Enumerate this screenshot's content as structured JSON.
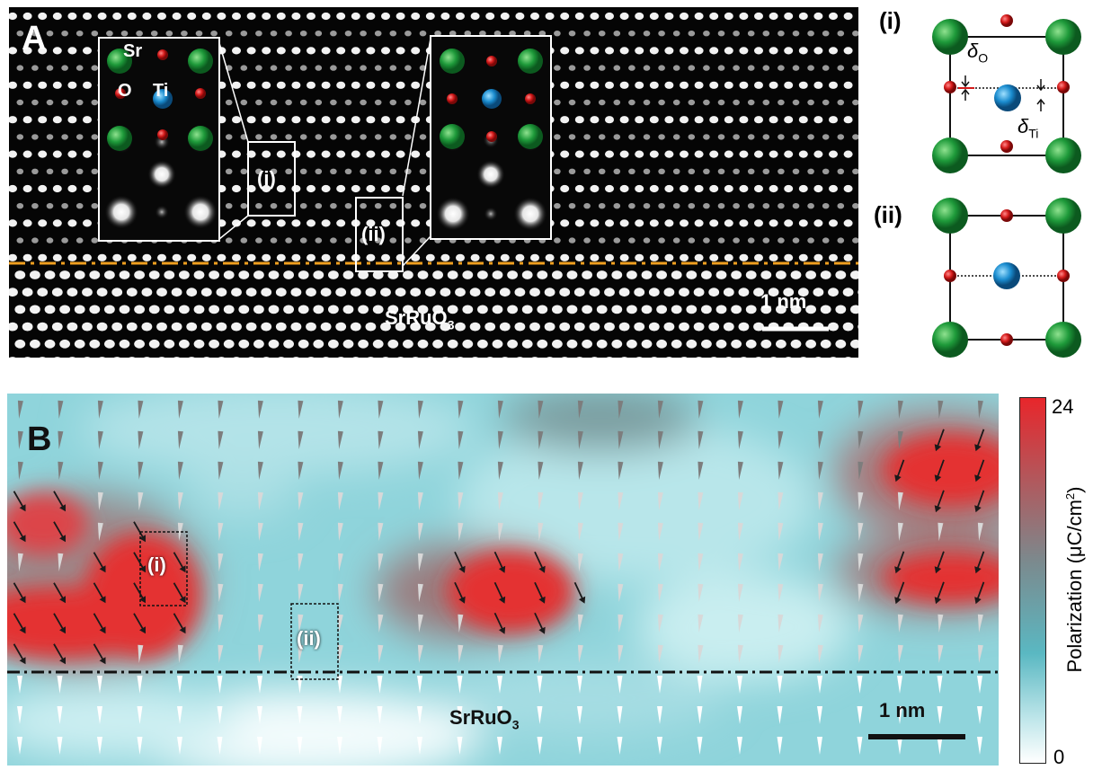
{
  "panel_a": {
    "letter": "A",
    "labels": {
      "sr": "Sr",
      "o": "O",
      "ti": "Ti",
      "substrate": "SrRuO",
      "substrate_sub": "3"
    },
    "boxes": [
      {
        "label": "(i)"
      },
      {
        "label": "(ii)"
      }
    ],
    "scalebar": "1 nm",
    "interface_color": "#f0a020"
  },
  "schematic": {
    "cell_i": {
      "label": "(i)",
      "delta_o": "δ",
      "delta_o_sub": "O",
      "delta_ti": "δ",
      "delta_ti_sub": "Ti"
    },
    "cell_ii": {
      "label": "(ii)"
    },
    "colors": {
      "sr": "#1e9a3a",
      "o": "#d41a1a",
      "ti": "#1a8ccf"
    }
  },
  "panel_b": {
    "letter": "B",
    "boxes": [
      {
        "label": "(i)"
      },
      {
        "label": "(ii)"
      }
    ],
    "substrate": "SrRuO",
    "substrate_sub": "3",
    "scalebar": "1 nm"
  },
  "colorbar": {
    "max": "24",
    "min": "0",
    "label": "Polarization (μC/cm",
    "label_sup": "2",
    "label_end": ")",
    "colors": {
      "high": "#e8262b",
      "mid": "#5ab8c2",
      "low": "#ffffff"
    }
  }
}
